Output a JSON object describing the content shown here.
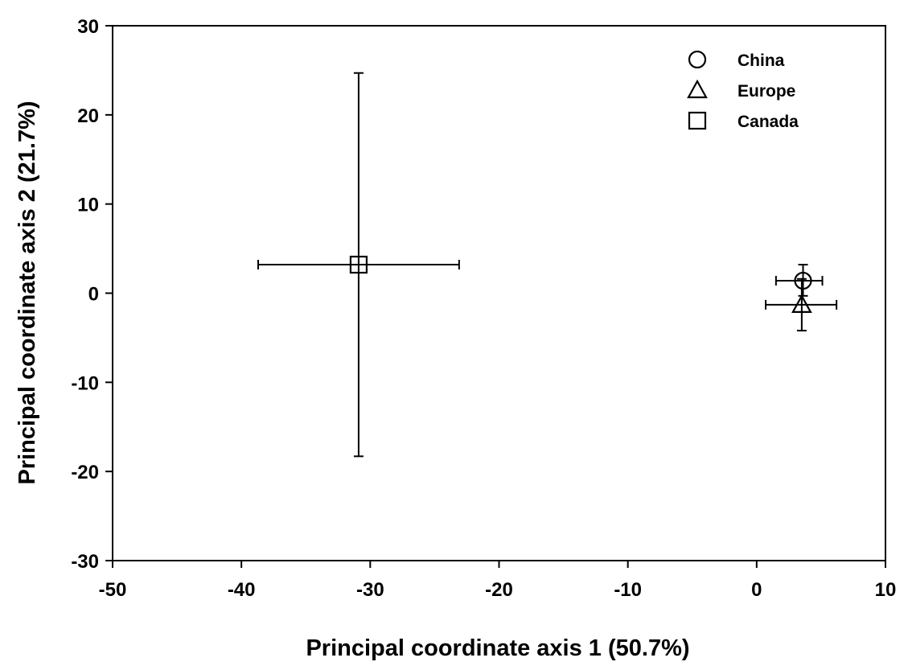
{
  "chart_data": {
    "type": "scatter",
    "xlabel": "Principal coordinate axis 1 (50.7%)",
    "ylabel": "Principal coordinate axis 2 (21.7%)",
    "xlim": [
      -50,
      10
    ],
    "ylim": [
      -30,
      30
    ],
    "xticks": [
      -50,
      -40,
      -30,
      -20,
      -10,
      0,
      10
    ],
    "yticks": [
      -30,
      -20,
      -10,
      0,
      10,
      20,
      30
    ],
    "grid": false,
    "legend": {
      "position": "top-right"
    },
    "series": [
      {
        "name": "China",
        "marker": "circle",
        "x": 3.6,
        "y": 1.4,
        "x_err": [
          2.1,
          1.5
        ],
        "y_err": [
          1.7,
          1.8
        ]
      },
      {
        "name": "Europe",
        "marker": "triangle",
        "x": 3.5,
        "y": -1.3,
        "x_err": [
          2.8,
          2.7
        ],
        "y_err": [
          2.9,
          2.9
        ]
      },
      {
        "name": "Canada",
        "marker": "square",
        "x": -30.9,
        "y": 3.2,
        "x_err": [
          7.8,
          7.8
        ],
        "y_err": [
          21.5,
          21.5
        ]
      }
    ]
  }
}
